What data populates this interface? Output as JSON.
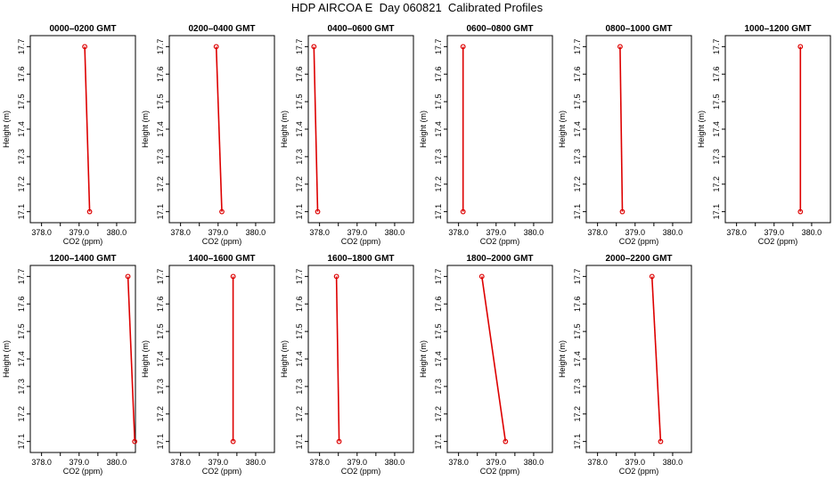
{
  "title": "HDP AIRCOA E  Day 060821  Calibrated Profiles",
  "chart_data": [
    {
      "type": "line",
      "title": "0000–0200 GMT",
      "xlabel": "CO2 (ppm)",
      "ylabel": "Height (m)",
      "xlim": [
        377.7,
        380.5
      ],
      "ylim": [
        17.06,
        17.74
      ],
      "xticks": [
        "378.0",
        "379.0",
        "380.0"
      ],
      "yticks": [
        "17.1",
        "17.2",
        "17.3",
        "17.4",
        "17.5",
        "17.6",
        "17.7"
      ],
      "x": [
        379.15,
        379.28
      ],
      "y": [
        17.7,
        17.1
      ],
      "color": "#dd0000"
    },
    {
      "type": "line",
      "title": "0200–0400 GMT",
      "xlabel": "CO2 (ppm)",
      "ylabel": "Height (m)",
      "xlim": [
        377.7,
        380.5
      ],
      "ylim": [
        17.06,
        17.74
      ],
      "xticks": [
        "378.0",
        "379.0",
        "380.0"
      ],
      "yticks": [
        "17.1",
        "17.2",
        "17.3",
        "17.4",
        "17.5",
        "17.6",
        "17.7"
      ],
      "x": [
        378.95,
        379.1
      ],
      "y": [
        17.7,
        17.1
      ],
      "color": "#dd0000"
    },
    {
      "type": "line",
      "title": "0400–0600 GMT",
      "xlabel": "CO2 (ppm)",
      "ylabel": "Height (m)",
      "xlim": [
        377.7,
        380.5
      ],
      "ylim": [
        17.06,
        17.74
      ],
      "xticks": [
        "378.0",
        "379.0",
        "380.0"
      ],
      "yticks": [
        "17.1",
        "17.2",
        "17.3",
        "17.4",
        "17.5",
        "17.6",
        "17.7"
      ],
      "x": [
        377.85,
        377.95
      ],
      "y": [
        17.7,
        17.1
      ],
      "color": "#dd0000"
    },
    {
      "type": "line",
      "title": "0600–0800 GMT",
      "xlabel": "CO2 (ppm)",
      "ylabel": "Height (m)",
      "xlim": [
        377.7,
        380.5
      ],
      "ylim": [
        17.06,
        17.74
      ],
      "xticks": [
        "378.0",
        "379.0",
        "380.0"
      ],
      "yticks": [
        "17.1",
        "17.2",
        "17.3",
        "17.4",
        "17.5",
        "17.6",
        "17.7"
      ],
      "x": [
        378.12,
        378.12
      ],
      "y": [
        17.7,
        17.1
      ],
      "color": "#dd0000"
    },
    {
      "type": "line",
      "title": "0800–1000 GMT",
      "xlabel": "CO2 (ppm)",
      "ylabel": "Height (m)",
      "xlim": [
        377.7,
        380.5
      ],
      "ylim": [
        17.06,
        17.74
      ],
      "xticks": [
        "378.0",
        "379.0",
        "380.0"
      ],
      "yticks": [
        "17.1",
        "17.2",
        "17.3",
        "17.4",
        "17.5",
        "17.6",
        "17.7"
      ],
      "x": [
        378.6,
        378.66
      ],
      "y": [
        17.7,
        17.1
      ],
      "color": "#dd0000"
    },
    {
      "type": "line",
      "title": "1000–1200 GMT",
      "xlabel": "CO2 (ppm)",
      "ylabel": "Height (m)",
      "xlim": [
        377.7,
        380.5
      ],
      "ylim": [
        17.06,
        17.74
      ],
      "xticks": [
        "378.0",
        "379.0",
        "380.0"
      ],
      "yticks": [
        "17.1",
        "17.2",
        "17.3",
        "17.4",
        "17.5",
        "17.6",
        "17.7"
      ],
      "x": [
        379.7,
        379.7
      ],
      "y": [
        17.7,
        17.1
      ],
      "color": "#dd0000"
    },
    {
      "type": "line",
      "title": "1200–1400 GMT",
      "xlabel": "CO2 (ppm)",
      "ylabel": "Height (m)",
      "xlim": [
        377.7,
        380.5
      ],
      "ylim": [
        17.06,
        17.74
      ],
      "xticks": [
        "378.0",
        "379.0",
        "380.0"
      ],
      "yticks": [
        "17.1",
        "17.2",
        "17.3",
        "17.4",
        "17.5",
        "17.6",
        "17.7"
      ],
      "x": [
        380.3,
        380.48
      ],
      "y": [
        17.7,
        17.1
      ],
      "color": "#dd0000"
    },
    {
      "type": "line",
      "title": "1400–1600 GMT",
      "xlabel": "CO2 (ppm)",
      "ylabel": "Height (m)",
      "xlim": [
        377.7,
        380.5
      ],
      "ylim": [
        17.06,
        17.74
      ],
      "xticks": [
        "378.0",
        "379.0",
        "380.0"
      ],
      "yticks": [
        "17.1",
        "17.2",
        "17.3",
        "17.4",
        "17.5",
        "17.6",
        "17.7"
      ],
      "x": [
        379.4,
        379.4
      ],
      "y": [
        17.7,
        17.1
      ],
      "color": "#dd0000"
    },
    {
      "type": "line",
      "title": "1600–1800 GMT",
      "xlabel": "CO2 (ppm)",
      "ylabel": "Height (m)",
      "xlim": [
        377.7,
        380.5
      ],
      "ylim": [
        17.06,
        17.74
      ],
      "xticks": [
        "378.0",
        "379.0",
        "380.0"
      ],
      "yticks": [
        "17.1",
        "17.2",
        "17.3",
        "17.4",
        "17.5",
        "17.6",
        "17.7"
      ],
      "x": [
        378.45,
        378.52
      ],
      "y": [
        17.7,
        17.1
      ],
      "color": "#dd0000"
    },
    {
      "type": "line",
      "title": "1800–2000 GMT",
      "xlabel": "CO2 (ppm)",
      "ylabel": "Height (m)",
      "xlim": [
        377.7,
        380.5
      ],
      "ylim": [
        17.06,
        17.74
      ],
      "xticks": [
        "378.0",
        "379.0",
        "380.0"
      ],
      "yticks": [
        "17.1",
        "17.2",
        "17.3",
        "17.4",
        "17.5",
        "17.6",
        "17.7"
      ],
      "x": [
        378.62,
        379.25
      ],
      "y": [
        17.7,
        17.1
      ],
      "color": "#dd0000"
    },
    {
      "type": "line",
      "title": "2000–2200 GMT",
      "xlabel": "CO2 (ppm)",
      "ylabel": "Height (m)",
      "xlim": [
        377.7,
        380.5
      ],
      "ylim": [
        17.06,
        17.74
      ],
      "xticks": [
        "378.0",
        "379.0",
        "380.0"
      ],
      "yticks": [
        "17.1",
        "17.2",
        "17.3",
        "17.4",
        "17.5",
        "17.6",
        "17.7"
      ],
      "x": [
        379.45,
        379.68
      ],
      "y": [
        17.7,
        17.1
      ],
      "color": "#dd0000"
    }
  ]
}
